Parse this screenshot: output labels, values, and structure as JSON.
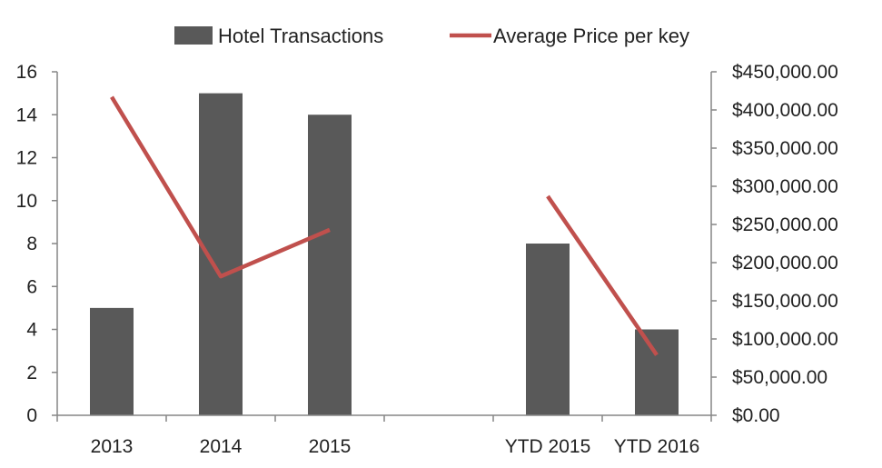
{
  "chart_data": {
    "type": "bar",
    "categories": [
      "2013",
      "2014",
      "2015",
      "",
      "YTD 2015",
      "YTD 2016"
    ],
    "series": [
      {
        "name": "Hotel Transactions",
        "type": "bar",
        "axis": "left",
        "color": "#595959",
        "values": [
          5,
          15,
          14,
          null,
          8,
          4
        ]
      },
      {
        "name": "Average Price per key",
        "type": "line",
        "axis": "right",
        "color": "#C0504D",
        "values": [
          417000,
          182000,
          243000,
          null,
          287000,
          79000
        ]
      }
    ],
    "y_left": {
      "lim": [
        0,
        16
      ],
      "ticks": [
        0,
        2,
        4,
        6,
        8,
        10,
        12,
        14,
        16
      ]
    },
    "y_right": {
      "lim": [
        0,
        450000
      ],
      "ticks": [
        0,
        50000,
        100000,
        150000,
        200000,
        250000,
        300000,
        350000,
        400000,
        450000
      ],
      "tick_labels": [
        "$0.00",
        "$50,000.00",
        "$100,000.00",
        "$150,000.00",
        "$200,000.00",
        "$250,000.00",
        "$300,000.00",
        "$350,000.00",
        "$400,000.00",
        "$450,000.00"
      ]
    },
    "legend_position": "top",
    "grid": false
  }
}
